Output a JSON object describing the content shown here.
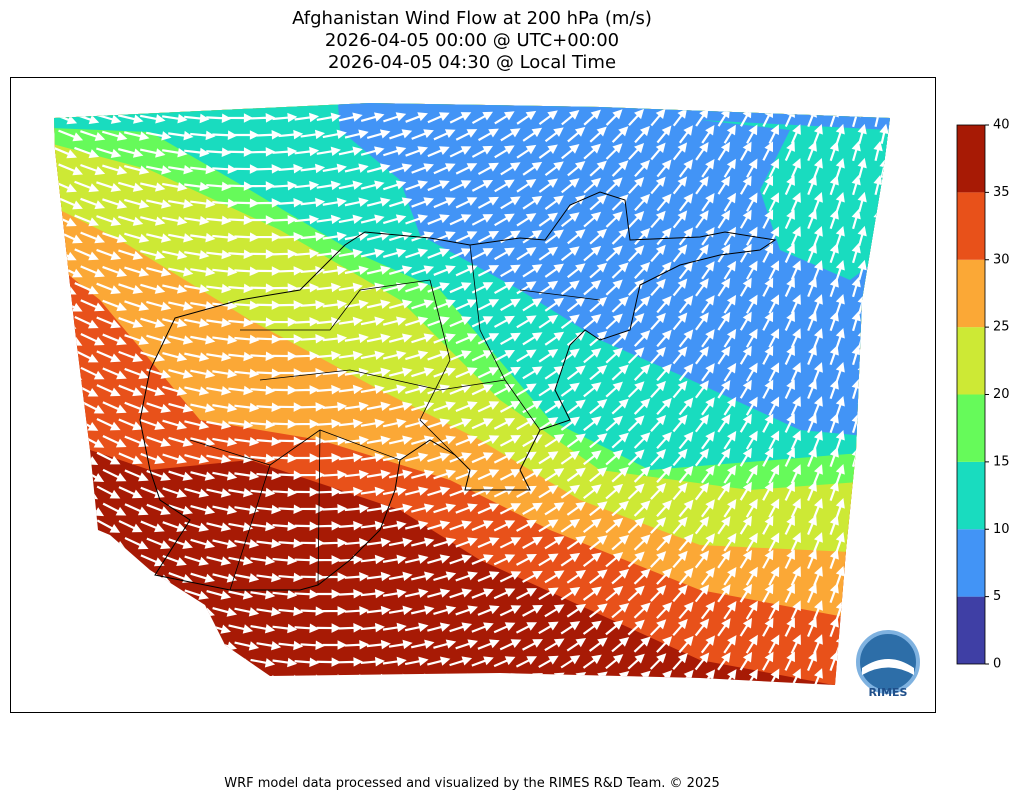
{
  "title": [
    "Afghanistan Wind Flow at 200 hPa (m/s)",
    "2026-04-05 00:00 @ UTC+00:00",
    "2026-04-05 04:30 @ Local Time"
  ],
  "colorbar": {
    "ticks": [
      0,
      5,
      10,
      15,
      20,
      25,
      30,
      35,
      40
    ],
    "colors": [
      "#3f3fa5",
      "#4294f6",
      "#19dcbf",
      "#66fa5a",
      "#cde935",
      "#fba836",
      "#e8511a",
      "#a71a05"
    ]
  },
  "logo": "RIMES",
  "footer": "WRF model data processed and visualized by the RIMES R&D Team. © 2025"
}
